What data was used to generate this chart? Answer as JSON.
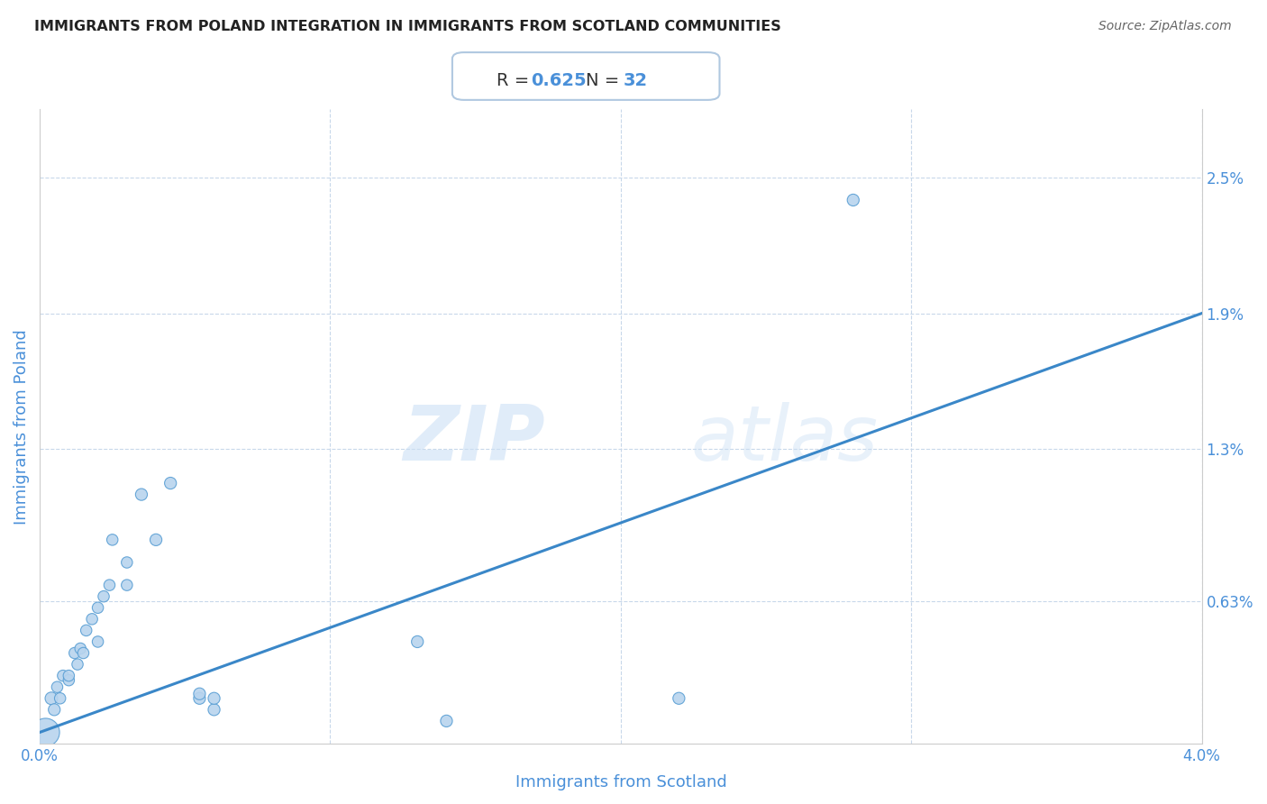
{
  "title": "IMMIGRANTS FROM POLAND INTEGRATION IN IMMIGRANTS FROM SCOTLAND COMMUNITIES",
  "source": "Source: ZipAtlas.com",
  "xlabel": "Immigrants from Scotland",
  "ylabel": "Immigrants from Poland",
  "R": 0.625,
  "N": 32,
  "xlim": [
    0.0,
    0.04
  ],
  "ylim": [
    0.0,
    0.028
  ],
  "ytick_labels": [
    "2.5%",
    "1.9%",
    "1.3%",
    "0.63%"
  ],
  "ytick_vals": [
    0.025,
    0.019,
    0.013,
    0.0063
  ],
  "scatter_color": "#b8d4ee",
  "scatter_edge_color": "#5a9fd4",
  "line_color": "#3a87c8",
  "watermark_zip": "ZIP",
  "watermark_atlas": "atlas",
  "scatter_x": [
    0.0002,
    0.0004,
    0.0005,
    0.0006,
    0.0007,
    0.0008,
    0.001,
    0.001,
    0.0012,
    0.0013,
    0.0014,
    0.0015,
    0.0016,
    0.0018,
    0.002,
    0.002,
    0.0022,
    0.0024,
    0.0025,
    0.003,
    0.003,
    0.0035,
    0.004,
    0.0045,
    0.0055,
    0.0055,
    0.006,
    0.006,
    0.013,
    0.014,
    0.022,
    0.028
  ],
  "scatter_y": [
    0.0005,
    0.002,
    0.0015,
    0.0025,
    0.002,
    0.003,
    0.0028,
    0.003,
    0.004,
    0.0035,
    0.0042,
    0.004,
    0.005,
    0.0055,
    0.0045,
    0.006,
    0.0065,
    0.007,
    0.009,
    0.007,
    0.008,
    0.011,
    0.009,
    0.0115,
    0.002,
    0.0022,
    0.0015,
    0.002,
    0.0045,
    0.001,
    0.002,
    0.024
  ],
  "scatter_sizes": [
    500,
    100,
    90,
    80,
    80,
    80,
    80,
    80,
    80,
    80,
    80,
    80,
    80,
    80,
    80,
    80,
    80,
    80,
    80,
    80,
    80,
    90,
    90,
    90,
    90,
    90,
    90,
    90,
    90,
    90,
    90,
    90
  ],
  "line_x0": 0.0,
  "line_x1": 0.04,
  "line_y0": 0.0005,
  "line_y1": 0.019,
  "title_fontsize": 11.5,
  "source_fontsize": 10,
  "axis_label_fontsize": 13,
  "tick_fontsize": 12,
  "annot_fontsize": 14,
  "background_color": "#ffffff"
}
